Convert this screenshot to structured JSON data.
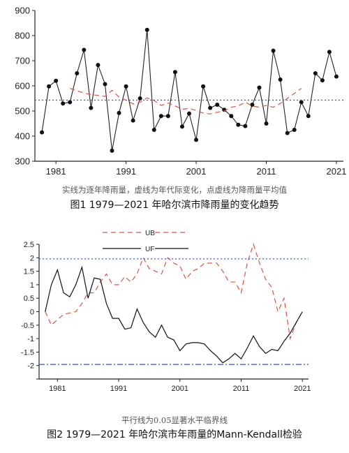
{
  "chart_data": [
    {
      "type": "line",
      "title": "",
      "xlabel": "",
      "ylabel": "",
      "xlim": [
        1978,
        2022
      ],
      "ylim": [
        300,
        900
      ],
      "xticks": [
        1981,
        1991,
        2001,
        2011,
        2021
      ],
      "yticks": [
        300,
        400,
        500,
        600,
        700,
        800,
        900
      ],
      "x": [
        1979,
        1980,
        1981,
        1982,
        1983,
        1984,
        1985,
        1986,
        1987,
        1988,
        1989,
        1990,
        1991,
        1992,
        1993,
        1994,
        1995,
        1996,
        1997,
        1998,
        1999,
        2000,
        2001,
        2002,
        2003,
        2004,
        2005,
        2006,
        2007,
        2008,
        2009,
        2010,
        2011,
        2012,
        2013,
        2014,
        2015,
        2016,
        2017,
        2018,
        2019,
        2020,
        2021
      ],
      "series": [
        {
          "style": "solid-dots",
          "color": "#222222",
          "values": [
            415,
            598,
            620,
            530,
            535,
            650,
            743,
            512,
            683,
            607,
            342,
            492,
            598,
            462,
            550,
            823,
            425,
            480,
            480,
            655,
            438,
            490,
            385,
            598,
            512,
            525,
            505,
            480,
            445,
            440,
            525,
            593,
            450,
            740,
            625,
            412,
            425,
            535,
            480,
            650,
            622,
            735,
            637
          ]
        },
        {
          "style": "dashed",
          "color": "#e0533d",
          "x": [
            1983,
            1984,
            1985,
            1986,
            1987,
            1988,
            1989,
            1990,
            1991,
            1992,
            1993,
            1994,
            1995,
            1996,
            1997,
            1998,
            1999,
            2000,
            2001,
            2002,
            2003,
            2004,
            2005,
            2006,
            2007,
            2008,
            2009,
            2010,
            2011,
            2012,
            2013,
            2014,
            2015,
            2016
          ],
          "values": [
            590,
            580,
            572,
            565,
            562,
            558,
            582,
            555,
            543,
            528,
            535,
            552,
            542,
            522,
            532,
            520,
            507,
            510,
            502,
            492,
            488,
            495,
            500,
            515,
            520,
            535,
            520,
            515,
            522,
            515,
            530,
            550,
            570,
            590
          ]
        },
        {
          "style": "dotted",
          "color": "#3a54c6",
          "constant": 543
        }
      ],
      "note": "实线为逐年降雨量，虚线为年代际变化，点虚线为降雨量平均值",
      "caption": "图1  1979—2021 年哈尔滨市降雨量的变化趋势"
    },
    {
      "type": "line",
      "title": "",
      "xlabel": "",
      "ylabel": "",
      "xlim": [
        1978,
        2022
      ],
      "ylim": [
        -2.5,
        2.5
      ],
      "xticks": [
        1981,
        1991,
        2001,
        2011,
        2021
      ],
      "yticks": [
        -2.5,
        -2,
        -1.5,
        -1,
        -0.5,
        0,
        0.5,
        1,
        1.5,
        2,
        2.5
      ],
      "ytick_labels": [
        "",
        "-2",
        "-1.5",
        "-1",
        "-0.5",
        "0",
        "0.5",
        "1",
        "1.5",
        "2",
        "2.5"
      ],
      "x": [
        1979,
        1980,
        1981,
        1982,
        1983,
        1984,
        1985,
        1986,
        1987,
        1988,
        1989,
        1990,
        1991,
        1992,
        1993,
        1994,
        1995,
        1996,
        1997,
        1998,
        1999,
        2000,
        2001,
        2002,
        2003,
        2004,
        2005,
        2006,
        2007,
        2008,
        2009,
        2010,
        2011,
        2012,
        2013,
        2014,
        2015,
        2016,
        2017,
        2018,
        2019,
        2020,
        2021
      ],
      "legend": [
        "UB",
        "UF"
      ],
      "series": [
        {
          "name": "UB",
          "style": "dashed",
          "color": "#e0533d",
          "values": [
            0.0,
            -0.5,
            -0.3,
            -0.1,
            -0.05,
            0.0,
            0.3,
            0.7,
            0.7,
            1.1,
            1.4,
            1.0,
            1.0,
            1.3,
            1.1,
            1.4,
            2.0,
            1.6,
            1.5,
            1.4,
            2.0,
            1.8,
            1.7,
            1.2,
            1.5,
            1.6,
            1.8,
            1.8,
            1.8,
            1.5,
            1.1,
            1.1,
            0.7,
            1.8,
            2.5,
            1.8,
            1.2,
            0.9,
            0.0,
            0.5,
            -1.0,
            -0.4,
            0.0
          ]
        },
        {
          "name": "UF",
          "style": "solid",
          "color": "#111111",
          "values": [
            0.0,
            1.0,
            1.55,
            0.7,
            0.55,
            1.0,
            1.65,
            0.5,
            1.25,
            1.2,
            0.3,
            -0.25,
            -0.25,
            -0.65,
            -0.6,
            0.1,
            -0.4,
            -0.75,
            -0.95,
            -0.5,
            -0.95,
            -1.05,
            -1.45,
            -1.2,
            -1.15,
            -1.15,
            -1.2,
            -1.45,
            -1.65,
            -1.9,
            -1.75,
            -1.55,
            -1.75,
            -1.35,
            -0.9,
            -1.3,
            -1.55,
            -1.4,
            -1.45,
            -1.1,
            -0.8,
            -0.4,
            0.0
          ]
        },
        {
          "style": "dotted",
          "color": "#3a54c6",
          "constant": 1.96
        },
        {
          "style": "dash-dot",
          "color": "#3a54c6",
          "constant": -1.96
        }
      ],
      "note": "平行线为0.05显著水平临界线",
      "caption": "图2  1979—2021 年哈尔滨市年雨量的Mann-Kendall检验"
    }
  ]
}
